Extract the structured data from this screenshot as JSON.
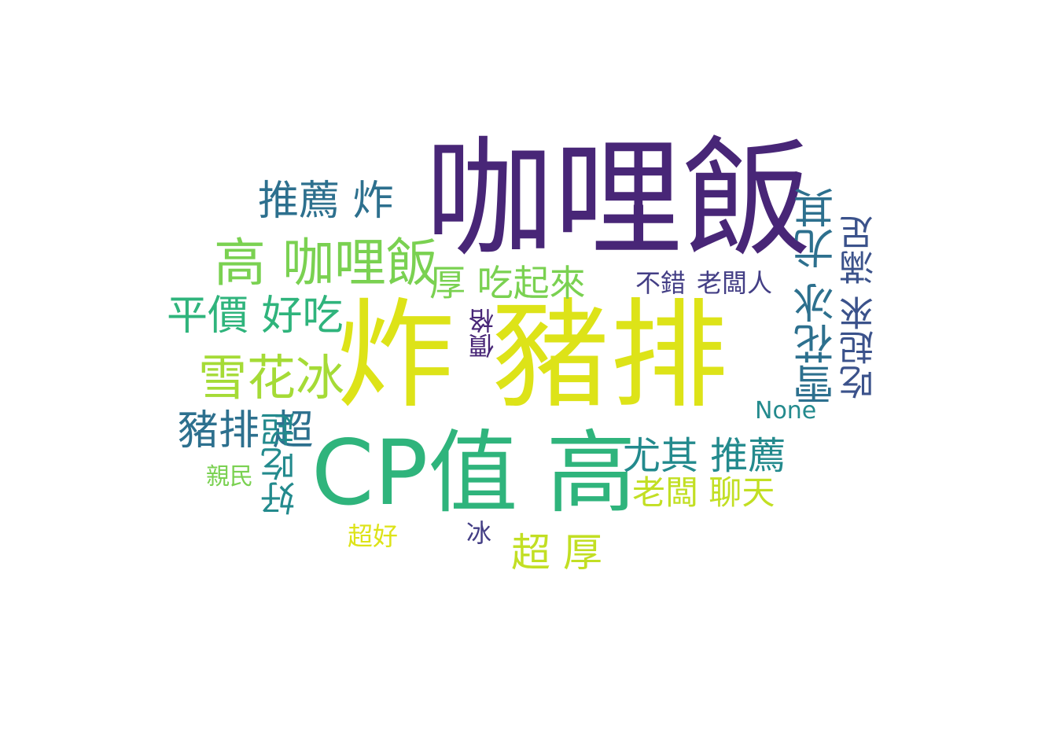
{
  "palette": {
    "background": "#ffffff",
    "purple": "#482677",
    "indigo": "#433e85",
    "blue": "#2d708e",
    "teal": "#238a8d",
    "green": "#2fb47c",
    "lime": "#7ad151",
    "yellow": "#dde318"
  },
  "words": {
    "w1": "咖哩飯",
    "w2": "炸 豬排",
    "w3": "CP值 高",
    "w4": "高 咖哩飯",
    "w5": "推薦 炸",
    "w6": "厚 吃起來",
    "w7": "平價 好吃",
    "w8": "雪花冰",
    "w9": "豬排 超",
    "w10": "尤其 推薦",
    "w11": "老闆 聊天",
    "w12": "超 厚",
    "w13": "不錯",
    "w14": "老闆人",
    "w15": "價格",
    "w16": "None",
    "w17": "親民",
    "w18": "超好",
    "w19": "冰",
    "w20": "好吃超",
    "w21": "雪花冰 尤其",
    "w22": "吃起來 滿足"
  }
}
